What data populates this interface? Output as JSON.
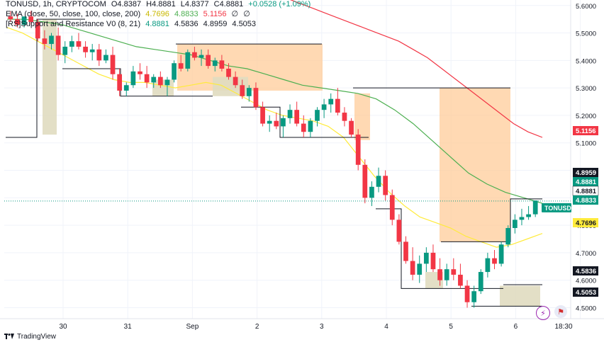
{
  "header": {
    "symbol_line": [
      "TONUSD, 1h, CRYPTOCOM",
      "O4.8387",
      "H4.8881",
      "L4.8377",
      "C4.8881",
      "+0.0528 (+1.09%)"
    ],
    "ema_label": "EMA (close, 50, close, 100, close, 200)",
    "ema_values": [
      "4.7696",
      "4.8833",
      "5.1156",
      "∅",
      "∅"
    ],
    "sr_label": "[RS]Support and Resistance V0 (8, 21)",
    "sr_values": [
      "4.8881",
      "4.5836",
      "4.8959",
      "4.5053"
    ]
  },
  "symbol_tag": "TONUSD",
  "price_axis": [
    "5.6000",
    "5.5000",
    "5.4000",
    "5.3000",
    "5.2000",
    "5.1000",
    "5.0000",
    "4.9000",
    "4.8000",
    "4.7000",
    "4.6000",
    "4.5000"
  ],
  "time_axis": [
    "30",
    "31",
    "Sep",
    "2",
    "3",
    "4",
    "5",
    "6",
    "18:30"
  ],
  "price_badges": [
    {
      "value": "5.1156",
      "bg": "#f23645",
      "fg": "#ffffff"
    },
    {
      "value": "4.8959",
      "bg": "#131722",
      "fg": "#ffffff"
    },
    {
      "value": "4.8881",
      "bg": "#089981",
      "fg": "#ffffff"
    },
    {
      "value": "4.8881",
      "bg": "#ffffff",
      "fg": "#131722"
    },
    {
      "value": "4.8833",
      "bg": "#089981",
      "fg": "#ffffff"
    },
    {
      "value": "4.7696",
      "bg": "#ffeb3b",
      "fg": "#131722"
    },
    {
      "value": "4.5836",
      "bg": "#131722",
      "fg": "#ffffff"
    },
    {
      "value": "4.5053",
      "bg": "#131722",
      "fg": "#ffffff"
    }
  ],
  "footer": {
    "brand": "TradingView"
  },
  "colors": {
    "up": "#089981",
    "down": "#f23645",
    "ema50": "#ffeb3b",
    "ema100": "#4caf50",
    "ema200": "#f23645",
    "resistance_zone": "#ffcc99",
    "support_zone": "#e0dcc0"
  },
  "chart_data": {
    "type": "candlestick",
    "symbol": "TONUSD",
    "timeframe": "1h",
    "exchange": "CRYPTOCOM",
    "ylim": [
      4.46,
      5.62
    ],
    "xlabels": [
      "30",
      "31",
      "Sep",
      "2",
      "3",
      "4",
      "5",
      "6",
      "18:30"
    ],
    "ohlc_last": {
      "open": 4.8387,
      "high": 4.8881,
      "low": 4.8377,
      "close": 4.8881,
      "change": 0.0528,
      "change_pct": 1.09
    },
    "series": [
      {
        "name": "EMA 50",
        "values": [
          5.52,
          5.5,
          5.47,
          5.44,
          5.41,
          5.38,
          5.35,
          5.33,
          5.32,
          5.32,
          5.31,
          5.3,
          5.31,
          5.32,
          5.31,
          5.28,
          5.25,
          5.22,
          5.2,
          5.19,
          5.18,
          5.16,
          5.12,
          5.05,
          4.98,
          4.92,
          4.87,
          4.83,
          4.81,
          4.79,
          4.76,
          4.74,
          4.72,
          4.73,
          4.75,
          4.77
        ]
      },
      {
        "name": "EMA 100",
        "values": [
          5.55,
          5.55,
          5.54,
          5.53,
          5.51,
          5.49,
          5.47,
          5.45,
          5.44,
          5.43,
          5.42,
          5.4,
          5.38,
          5.37,
          5.35,
          5.33,
          5.31,
          5.3,
          5.29,
          5.28,
          5.26,
          5.22,
          5.17,
          5.11,
          5.05,
          4.99,
          4.95,
          4.92,
          4.9,
          4.88
        ]
      },
      {
        "name": "EMA 200",
        "values": [
          5.66,
          5.65,
          5.63,
          5.61,
          5.59,
          5.57,
          5.55,
          5.53,
          5.51,
          5.49,
          5.47,
          5.44,
          5.41,
          5.37,
          5.33,
          5.29,
          5.25,
          5.21,
          5.17,
          5.14,
          5.12
        ]
      }
    ],
    "support_resistance_levels": [
      4.8959,
      4.8881,
      4.5836,
      4.5053
    ],
    "candles": [
      [
        5.56,
        5.58,
        5.54,
        5.55
      ],
      [
        5.55,
        5.57,
        5.52,
        5.53
      ],
      [
        5.53,
        5.56,
        5.52,
        5.56
      ],
      [
        5.56,
        5.58,
        5.53,
        5.54
      ],
      [
        5.54,
        5.55,
        5.47,
        5.48
      ],
      [
        5.48,
        5.51,
        5.44,
        5.46
      ],
      [
        5.46,
        5.5,
        5.44,
        5.49
      ],
      [
        5.49,
        5.52,
        5.4,
        5.42
      ],
      [
        5.42,
        5.47,
        5.39,
        5.45
      ],
      [
        5.45,
        5.49,
        5.43,
        5.47
      ],
      [
        5.47,
        5.5,
        5.44,
        5.45
      ],
      [
        5.45,
        5.47,
        5.41,
        5.43
      ],
      [
        5.43,
        5.46,
        5.4,
        5.44
      ],
      [
        5.44,
        5.46,
        5.38,
        5.4
      ],
      [
        5.4,
        5.44,
        5.39,
        5.42
      ],
      [
        5.42,
        5.45,
        5.33,
        5.35
      ],
      [
        5.35,
        5.37,
        5.27,
        5.29
      ],
      [
        5.29,
        5.32,
        5.27,
        5.31
      ],
      [
        5.31,
        5.38,
        5.3,
        5.36
      ],
      [
        5.36,
        5.39,
        5.33,
        5.35
      ],
      [
        5.35,
        5.38,
        5.3,
        5.32
      ],
      [
        5.32,
        5.35,
        5.3,
        5.34
      ],
      [
        5.34,
        5.36,
        5.3,
        5.31
      ],
      [
        5.31,
        5.34,
        5.27,
        5.33
      ],
      [
        5.33,
        5.4,
        5.32,
        5.39
      ],
      [
        5.39,
        5.42,
        5.36,
        5.37
      ],
      [
        5.37,
        5.44,
        5.36,
        5.43
      ],
      [
        5.43,
        5.45,
        5.4,
        5.41
      ],
      [
        5.41,
        5.44,
        5.38,
        5.42
      ],
      [
        5.42,
        5.44,
        5.37,
        5.38
      ],
      [
        5.38,
        5.41,
        5.36,
        5.4
      ],
      [
        5.4,
        5.42,
        5.36,
        5.37
      ],
      [
        5.37,
        5.39,
        5.33,
        5.34
      ],
      [
        5.34,
        5.36,
        5.3,
        5.31
      ],
      [
        5.31,
        5.33,
        5.26,
        5.27
      ],
      [
        5.27,
        5.31,
        5.25,
        5.3
      ],
      [
        5.3,
        5.32,
        5.22,
        5.23
      ],
      [
        5.23,
        5.25,
        5.16,
        5.17
      ],
      [
        5.17,
        5.2,
        5.14,
        5.18
      ],
      [
        5.18,
        5.21,
        5.15,
        5.16
      ],
      [
        5.16,
        5.2,
        5.12,
        5.19
      ],
      [
        5.19,
        5.24,
        5.17,
        5.22
      ],
      [
        5.22,
        5.25,
        5.16,
        5.17
      ],
      [
        5.17,
        5.2,
        5.12,
        5.14
      ],
      [
        5.14,
        5.19,
        5.12,
        5.18
      ],
      [
        5.18,
        5.23,
        5.16,
        5.22
      ],
      [
        5.22,
        5.26,
        5.19,
        5.24
      ],
      [
        5.24,
        5.28,
        5.21,
        5.26
      ],
      [
        5.26,
        5.3,
        5.2,
        5.21
      ],
      [
        5.21,
        5.23,
        5.16,
        5.18
      ],
      [
        5.18,
        5.19,
        5.12,
        5.13
      ],
      [
        5.13,
        5.15,
        5.0,
        5.02
      ],
      [
        5.02,
        5.04,
        4.88,
        4.9
      ],
      [
        4.9,
        4.96,
        4.87,
        4.94
      ],
      [
        4.94,
        5.01,
        4.92,
        4.98
      ],
      [
        4.98,
        5.0,
        4.89,
        4.91
      ],
      [
        4.91,
        4.93,
        4.8,
        4.82
      ],
      [
        4.82,
        4.84,
        4.73,
        4.74
      ],
      [
        4.74,
        4.76,
        4.66,
        4.67
      ],
      [
        4.67,
        4.72,
        4.6,
        4.62
      ],
      [
        4.62,
        4.69,
        4.59,
        4.66
      ],
      [
        4.66,
        4.72,
        4.63,
        4.7
      ],
      [
        4.7,
        4.73,
        4.63,
        4.64
      ],
      [
        4.64,
        4.68,
        4.58,
        4.6
      ],
      [
        4.6,
        4.66,
        4.58,
        4.64
      ],
      [
        4.64,
        4.68,
        4.6,
        4.62
      ],
      [
        4.62,
        4.66,
        4.57,
        4.58
      ],
      [
        4.58,
        4.6,
        4.5,
        4.52
      ],
      [
        4.52,
        4.58,
        4.5,
        4.56
      ],
      [
        4.56,
        4.64,
        4.55,
        4.63
      ],
      [
        4.63,
        4.7,
        4.61,
        4.68
      ],
      [
        4.68,
        4.71,
        4.64,
        4.66
      ],
      [
        4.66,
        4.74,
        4.65,
        4.73
      ],
      [
        4.73,
        4.8,
        4.72,
        4.79
      ],
      [
        4.79,
        4.84,
        4.77,
        4.82
      ],
      [
        4.82,
        4.86,
        4.8,
        4.83
      ],
      [
        4.83,
        4.87,
        4.82,
        4.84
      ],
      [
        4.84,
        4.89,
        4.83,
        4.89
      ]
    ]
  }
}
